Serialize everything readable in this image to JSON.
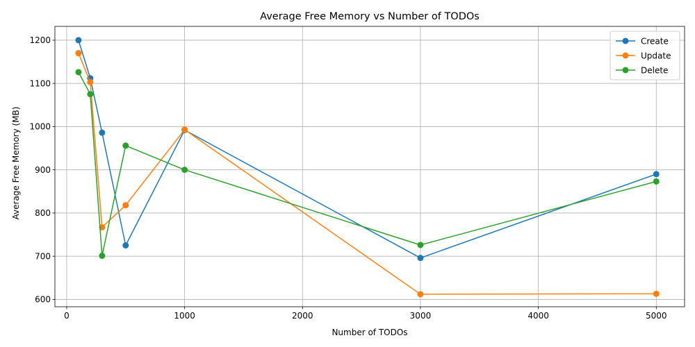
{
  "chart_data": {
    "type": "line",
    "title": "Average Free Memory vs Number of TODOs",
    "xlabel": "Number of TODOs",
    "ylabel": "Average Free Memory (MB)",
    "xlim": [
      -100,
      5240
    ],
    "ylim": [
      583,
      1232
    ],
    "xticks": [
      0,
      1000,
      2000,
      3000,
      4000,
      5000
    ],
    "yticks": [
      600,
      700,
      800,
      900,
      1000,
      1100,
      1200
    ],
    "grid": true,
    "legend_position": "top-right",
    "x": [
      100,
      200,
      300,
      500,
      1000,
      3000,
      5000
    ],
    "series": [
      {
        "name": "Create",
        "color": "#1f77b4",
        "values": [
          1200,
          1112,
          986,
          725,
          992,
          696,
          890
        ]
      },
      {
        "name": "Update",
        "color": "#ff7f0e",
        "values": [
          1170,
          1103,
          767,
          818,
          993,
          612,
          613
        ]
      },
      {
        "name": "Delete",
        "color": "#2ca02c",
        "values": [
          1126,
          1075,
          701,
          956,
          900,
          726,
          873
        ]
      }
    ]
  }
}
